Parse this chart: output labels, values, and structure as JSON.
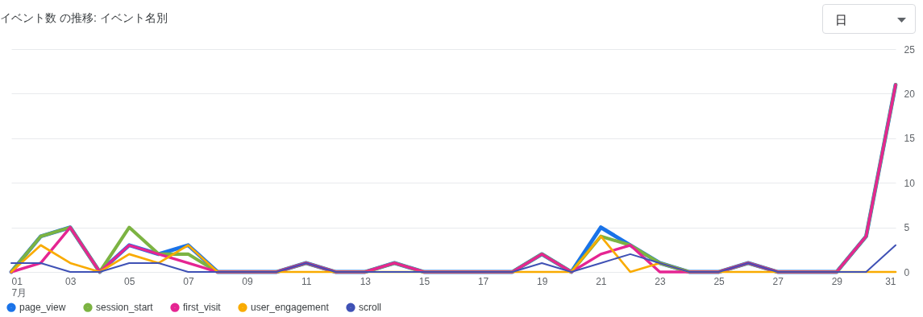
{
  "chart_data": {
    "type": "line",
    "title": "イベント数 の推移: イベント名別",
    "annotations": [
      "日"
    ],
    "x": [
      "--07-01",
      "--07-02",
      "--07-03",
      "--07-04",
      "--07-05",
      "--07-06",
      "--07-07",
      "--07-08",
      "--07-09",
      "--07-10",
      "--07-11",
      "--07-12",
      "--07-13",
      "--07-14",
      "--07-15",
      "--07-16",
      "--07-17",
      "--07-18",
      "--07-19",
      "--07-20",
      "--07-21",
      "--07-22",
      "--07-23",
      "--07-24",
      "--07-25",
      "--07-26",
      "--07-27",
      "--07-28",
      "--07-29",
      "--07-30",
      "--07-31"
    ],
    "xlim": [
      "--07-01",
      "--07-31"
    ],
    "xticks": [
      {
        "value": "--07-01",
        "label": "01\n7月"
      },
      {
        "value": "--07-03",
        "label": "03"
      },
      {
        "value": "--07-05",
        "label": "05"
      },
      {
        "value": "--07-07",
        "label": "07"
      },
      {
        "value": "--07-09",
        "label": "09"
      },
      {
        "value": "--07-11",
        "label": "11"
      },
      {
        "value": "--07-13",
        "label": "13"
      },
      {
        "value": "--07-15",
        "label": "15"
      },
      {
        "value": "--07-17",
        "label": "17"
      },
      {
        "value": "--07-19",
        "label": "19"
      },
      {
        "value": "--07-21",
        "label": "21"
      },
      {
        "value": "--07-23",
        "label": "23"
      },
      {
        "value": "--07-25",
        "label": "25"
      },
      {
        "value": "--07-27",
        "label": "27"
      },
      {
        "value": "--07-29",
        "label": "29"
      },
      {
        "value": "--07-31",
        "label": "31"
      }
    ],
    "ylim": [
      0,
      25
    ],
    "yticks": [
      0,
      5,
      10,
      15,
      20,
      25
    ],
    "grid": "y",
    "legend": "bottom",
    "series": [
      {
        "name": "page_view",
        "color": "#1a73e8",
        "values": [
          0,
          4,
          5,
          0,
          3,
          2,
          3,
          0,
          0,
          0,
          1,
          0,
          0,
          1,
          0,
          0,
          0,
          0,
          2,
          0,
          5,
          3,
          1,
          0,
          0,
          1,
          0,
          0,
          0,
          4,
          21
        ]
      },
      {
        "name": "session_start",
        "color": "#7cb342",
        "values": [
          0,
          4,
          5,
          0,
          5,
          2,
          2,
          0,
          0,
          0,
          1,
          0,
          0,
          1,
          0,
          0,
          0,
          0,
          2,
          0,
          4,
          3,
          1,
          0,
          0,
          1,
          0,
          0,
          0,
          4,
          21
        ]
      },
      {
        "name": "first_visit",
        "color": "#e52592",
        "values": [
          0,
          1,
          5,
          0,
          3,
          2,
          1,
          0,
          0,
          0,
          1,
          0,
          0,
          1,
          0,
          0,
          0,
          0,
          2,
          0,
          2,
          3,
          0,
          0,
          0,
          1,
          0,
          0,
          0,
          4,
          21
        ]
      },
      {
        "name": "user_engagement",
        "color": "#f9ab00",
        "values": [
          0,
          3,
          1,
          0,
          2,
          1,
          3,
          0,
          0,
          0,
          0,
          0,
          0,
          0,
          0,
          0,
          0,
          0,
          0,
          0,
          4,
          0,
          1,
          0,
          0,
          0,
          0,
          0,
          0,
          0,
          0
        ]
      },
      {
        "name": "scroll",
        "color": "#3f51b5",
        "values": [
          1,
          1,
          0,
          0,
          1,
          1,
          0,
          0,
          0,
          0,
          1,
          0,
          0,
          0,
          0,
          0,
          0,
          0,
          1,
          0,
          1,
          2,
          1,
          0,
          0,
          1,
          0,
          0,
          0,
          0,
          3
        ]
      }
    ]
  }
}
